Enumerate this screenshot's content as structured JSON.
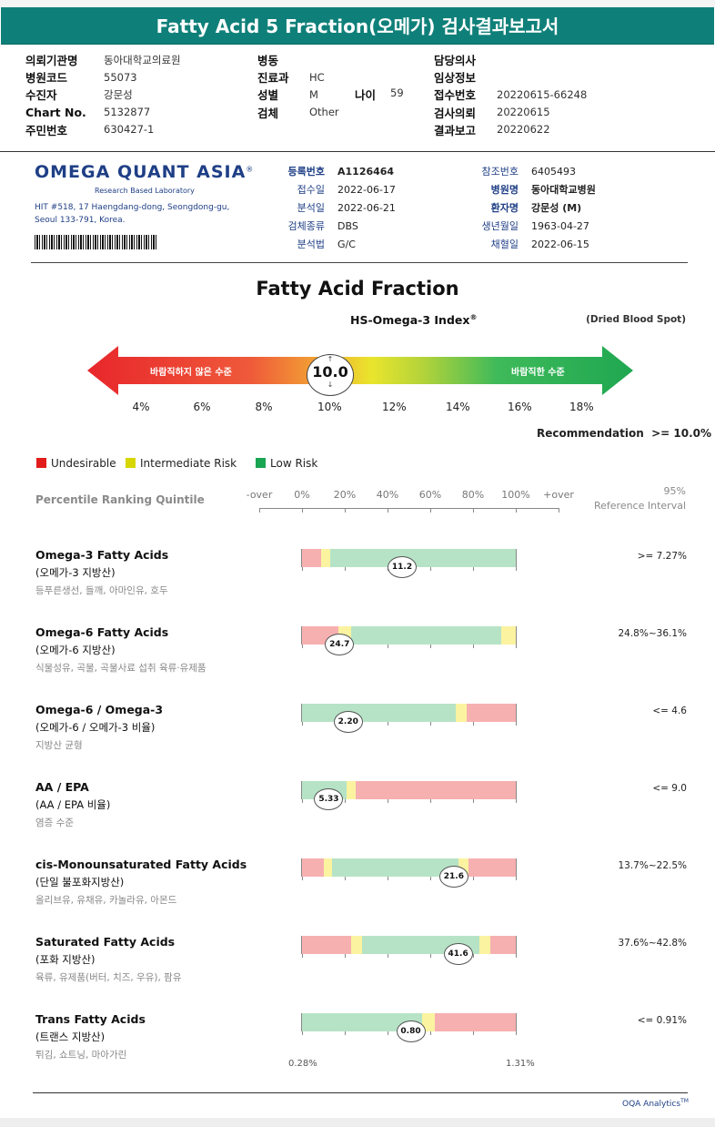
{
  "title": "Fatty Acid 5 Fraction(오메가) 검사결과보고서",
  "info": {
    "col1": [
      {
        "label": "의뢰기관명",
        "value": "동아대학교의료원"
      },
      {
        "label": "병원코드",
        "value": "55073"
      },
      {
        "label": "수진자",
        "value": "강문성"
      },
      {
        "label": "Chart No.",
        "value": "5132877"
      },
      {
        "label": "주민번호",
        "value": "630427-1"
      }
    ],
    "col2": [
      {
        "label": "병동",
        "value": ""
      },
      {
        "label": "진료과",
        "value": "HC"
      },
      {
        "label": "성별",
        "value": "M"
      },
      {
        "label": "검체",
        "value": "Other"
      }
    ],
    "age_label": "나이",
    "age_value": "59",
    "col3": [
      {
        "label": "담당의사",
        "value": ""
      },
      {
        "label": "임상정보",
        "value": ""
      },
      {
        "label": "접수번호",
        "value": "20220615-66248"
      },
      {
        "label": "검사의뢰",
        "value": "20220615"
      },
      {
        "label": "결과보고",
        "value": "20220622"
      }
    ]
  },
  "lab": {
    "name": "OMEGA QUANT ASIA",
    "name_sup": "®",
    "tagline": "Research Based Laboratory",
    "address1": "HIT #518, 17 Haengdang-dong, Seongdong-gu,",
    "address2": "Seoul 133-791, Korea.",
    "mid": [
      {
        "label": "등록번호",
        "value": "A1126464",
        "bold": true
      },
      {
        "label": "접수일",
        "value": "2022-06-17"
      },
      {
        "label": "분석일",
        "value": "2022-06-21"
      },
      {
        "label": "검체종류",
        "value": "DBS"
      },
      {
        "label": "분석법",
        "value": "G/C"
      }
    ],
    "right": [
      {
        "label": "참조번호",
        "value": "6405493"
      },
      {
        "label": "병원명",
        "value": "동아대학교병원",
        "bold": true
      },
      {
        "label": "환자명",
        "value": "강문성 (M)",
        "bold": true
      },
      {
        "label": "생년월일",
        "value": "1963-04-27"
      },
      {
        "label": "채혈일",
        "value": "2022-06-15"
      }
    ]
  },
  "fraction": {
    "title": "Fatty Acid Fraction",
    "index_label": "HS-Omega-3 Index",
    "index_sup": "®",
    "sample_type": "(Dried Blood Spot)",
    "undesirable_text": "바람직하지 않은 수준",
    "desirable_text": "바람직한 수준",
    "value": "10.0",
    "value_num": 10.0,
    "scale": [
      "4%",
      "6%",
      "8%",
      "10%",
      "12%",
      "14%",
      "16%",
      "18%"
    ],
    "recommendation_label": "Recommendation",
    "recommendation_value": ">= 10.0%"
  },
  "legend": [
    {
      "label": "Undesirable",
      "color": "#e21b1b"
    },
    {
      "label": "Intermediate Risk",
      "color": "#d7d600"
    },
    {
      "label": "Low Risk",
      "color": "#19a552"
    }
  ],
  "quintile": {
    "label": "Percentile Ranking Quintile",
    "axis": [
      "-over",
      "0%",
      "20%",
      "40%",
      "60%",
      "80%",
      "100%",
      "+over"
    ],
    "ref_title1": "95%",
    "ref_title2": "Reference Interval"
  },
  "colors": {
    "red": "#f7b0b0",
    "yellow": "#fbf3a0",
    "green": "#b6e3c6"
  },
  "rows": [
    {
      "title": "Omega-3 Fatty Acids",
      "sub": "(오메가-3 지방산)",
      "desc": "등푸른생선, 들깨, 아마인유, 호두",
      "ref": ">= 7.27%",
      "value": "11.2",
      "pos": 0.46,
      "segs": [
        [
          "red",
          0,
          0.09
        ],
        [
          "yellow",
          0.09,
          0.13
        ],
        [
          "green",
          0.13,
          1.0
        ]
      ]
    },
    {
      "title": "Omega-6 Fatty Acids",
      "sub": "(오메가-6 지방산)",
      "desc": "식물성유, 곡물, 곡물사료 섭취 육류·유제품",
      "ref": "24.8%~36.1%",
      "value": "24.7",
      "pos": 0.17,
      "segs": [
        [
          "red",
          0,
          0.17
        ],
        [
          "yellow",
          0.17,
          0.23
        ],
        [
          "green",
          0.23,
          0.93
        ],
        [
          "yellow",
          0.93,
          1.0
        ]
      ]
    },
    {
      "title": "Omega-6 / Omega-3",
      "sub": "(오메가-6 / 오메가-3 비율)",
      "desc": "지방산 균형",
      "ref": "<= 4.6",
      "value": "2.20",
      "pos": 0.21,
      "segs": [
        [
          "green",
          0,
          0.72
        ],
        [
          "yellow",
          0.72,
          0.77
        ],
        [
          "red",
          0.77,
          1.0
        ]
      ]
    },
    {
      "title": "AA / EPA",
      "sub": "(AA / EPA 비율)",
      "desc": "염증 수준",
      "ref": "<= 9.0",
      "value": "5.33",
      "pos": 0.12,
      "segs": [
        [
          "green",
          0,
          0.21
        ],
        [
          "yellow",
          0.21,
          0.25
        ],
        [
          "red",
          0.25,
          1.0
        ]
      ]
    },
    {
      "title": "cis-Monounsaturated Fatty Acids",
      "sub": "(단일 불포화지방산)",
      "desc": "올리브유, 유채유, 카놀라유, 아몬드",
      "ref": "13.7%~22.5%",
      "value": "21.6",
      "pos": 0.7,
      "segs": [
        [
          "red",
          0,
          0.1
        ],
        [
          "yellow",
          0.1,
          0.14
        ],
        [
          "green",
          0.14,
          0.73
        ],
        [
          "yellow",
          0.73,
          0.78
        ],
        [
          "red",
          0.78,
          1.0
        ]
      ]
    },
    {
      "title": "Saturated Fatty Acids",
      "sub": "(포화 지방산)",
      "desc": "육류, 유제품(버터, 치즈, 우유), 팜유",
      "ref": "37.6%~42.8%",
      "value": "41.6",
      "pos": 0.72,
      "segs": [
        [
          "red",
          0,
          0.23
        ],
        [
          "yellow",
          0.23,
          0.28
        ],
        [
          "green",
          0.28,
          0.83
        ],
        [
          "yellow",
          0.83,
          0.88
        ],
        [
          "red",
          0.88,
          1.0
        ]
      ]
    },
    {
      "title": "Trans Fatty Acids",
      "sub": "(트랜스 지방산)",
      "desc": "튀김, 쇼트닝, 마아가린",
      "ref": "<= 0.91%",
      "value": "0.80",
      "pos": 0.5,
      "segs": [
        [
          "green",
          0,
          0.56
        ],
        [
          "yellow",
          0.56,
          0.62
        ],
        [
          "red",
          0.62,
          1.0
        ]
      ],
      "min_label": "0.28%",
      "max_label": "1.31%"
    }
  ],
  "footer": "OQA Analytics",
  "footer_sup": "TM"
}
